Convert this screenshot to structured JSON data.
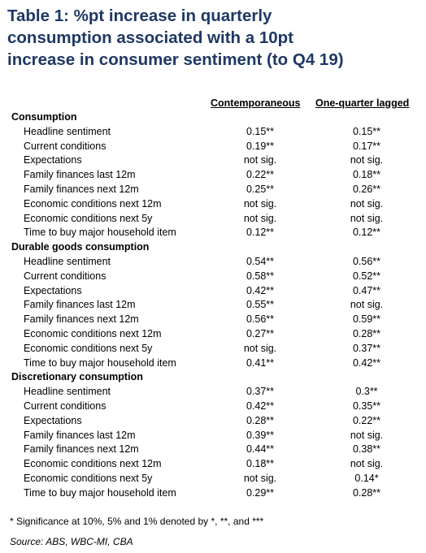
{
  "title_lines": [
    "Table 1: %pt increase in quarterly",
    "consumption associated with a 10pt",
    "increase in consumer sentiment (to Q4 19)"
  ],
  "columns": [
    "Contemporaneous",
    "One-quarter lagged"
  ],
  "sections": [
    {
      "name": "Consumption",
      "rows": [
        {
          "label": "Headline sentiment",
          "c1": "0.15**",
          "c2": "0.15**"
        },
        {
          "label": "Current conditions",
          "c1": "0.19**",
          "c2": "0.17**"
        },
        {
          "label": "Expectations",
          "c1": "not sig.",
          "c2": "not sig."
        },
        {
          "label": "Family finances last 12m",
          "c1": "0.22**",
          "c2": "0.18**"
        },
        {
          "label": "Family finances next 12m",
          "c1": "0.25**",
          "c2": "0.26**"
        },
        {
          "label": "Economic conditions next 12m",
          "c1": "not sig.",
          "c2": "not sig."
        },
        {
          "label": "Economic conditions next 5y",
          "c1": "not sig.",
          "c2": "not sig."
        },
        {
          "label": "Time to buy major household item",
          "c1": "0.12**",
          "c2": "0.12**"
        }
      ]
    },
    {
      "name": "Durable goods consumption",
      "rows": [
        {
          "label": "Headline sentiment",
          "c1": "0.54**",
          "c2": "0.56**"
        },
        {
          "label": "Current conditions",
          "c1": "0.58**",
          "c2": "0.52**"
        },
        {
          "label": "Expectations",
          "c1": "0.42**",
          "c2": "0.47**"
        },
        {
          "label": "Family finances last 12m",
          "c1": "0.55**",
          "c2": "not sig."
        },
        {
          "label": "Family finances next 12m",
          "c1": "0.56**",
          "c2": "0.59**"
        },
        {
          "label": "Economic conditions next 12m",
          "c1": "0.27**",
          "c2": "0.28**"
        },
        {
          "label": "Economic conditions next 5y",
          "c1": "not sig.",
          "c2": "0.37**"
        },
        {
          "label": "Time to buy major household item",
          "c1": "0.41**",
          "c2": "0.42**"
        }
      ]
    },
    {
      "name": "Discretionary consumption",
      "rows": [
        {
          "label": "Headline sentiment",
          "c1": "0.37**",
          "c2": "0.3**"
        },
        {
          "label": "Current conditions",
          "c1": "0.42**",
          "c2": "0.35**"
        },
        {
          "label": "Expectations",
          "c1": "0.28**",
          "c2": "0.22**"
        },
        {
          "label": "Family finances last 12m",
          "c1": "0.39**",
          "c2": "not sig."
        },
        {
          "label": "Family finances next 12m",
          "c1": "0.44**",
          "c2": "0.38**"
        },
        {
          "label": "Economic conditions next 12m",
          "c1": "0.18**",
          "c2": "not sig."
        },
        {
          "label": "Economic conditions next 5y",
          "c1": "not sig.",
          "c2": "0.14*"
        },
        {
          "label": "Time to buy major household item",
          "c1": "0.29**",
          "c2": "0.28**"
        }
      ]
    }
  ],
  "footnote": "*   Significance at 10%, 5% and 1% denoted by *, **, and ***",
  "source": "Source: ABS, WBC-MI, CBA",
  "colors": {
    "title": "#1f3864",
    "text": "#000000"
  }
}
